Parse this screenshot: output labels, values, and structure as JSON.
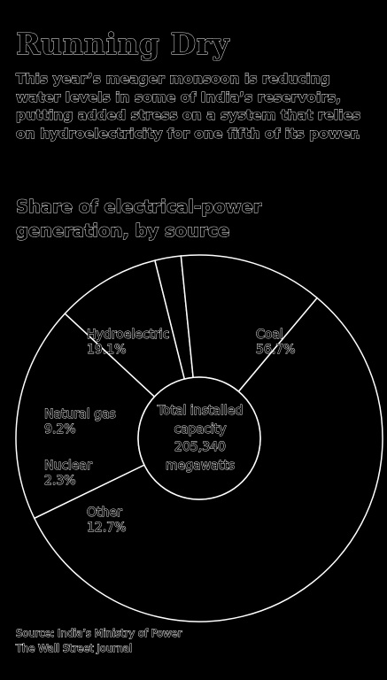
{
  "headline": "Running Dry",
  "dek": "This year’s meager monsoon is reducing water levels in some of India’s reservoirs, putting added stress on a system that relies on hydroelectricity for one fifth of its power.",
  "chart_data": {
    "type": "pie",
    "title": "Share of electrical-power generation, by source",
    "slices": [
      {
        "label": "Coal",
        "value": 56.7,
        "value_label": "56.7%"
      },
      {
        "label": "Hydroelectric",
        "value": 19.1,
        "value_label": "19.1%"
      },
      {
        "label": "Natural gas",
        "value": 9.2,
        "value_label": "9.2%"
      },
      {
        "label": "Nuclear",
        "value": 2.3,
        "value_label": "2.3%"
      },
      {
        "label": "Other",
        "value": 12.7,
        "value_label": "12.7%"
      }
    ],
    "center_text": [
      "Total installed",
      "capacity",
      "205,340",
      "megawatts"
    ]
  },
  "footer": {
    "source": "Source: India’s Ministry of Power",
    "credit": "The Wall Street Journal"
  },
  "colors": {
    "background": "#000000",
    "stroke": "#ffffff"
  }
}
